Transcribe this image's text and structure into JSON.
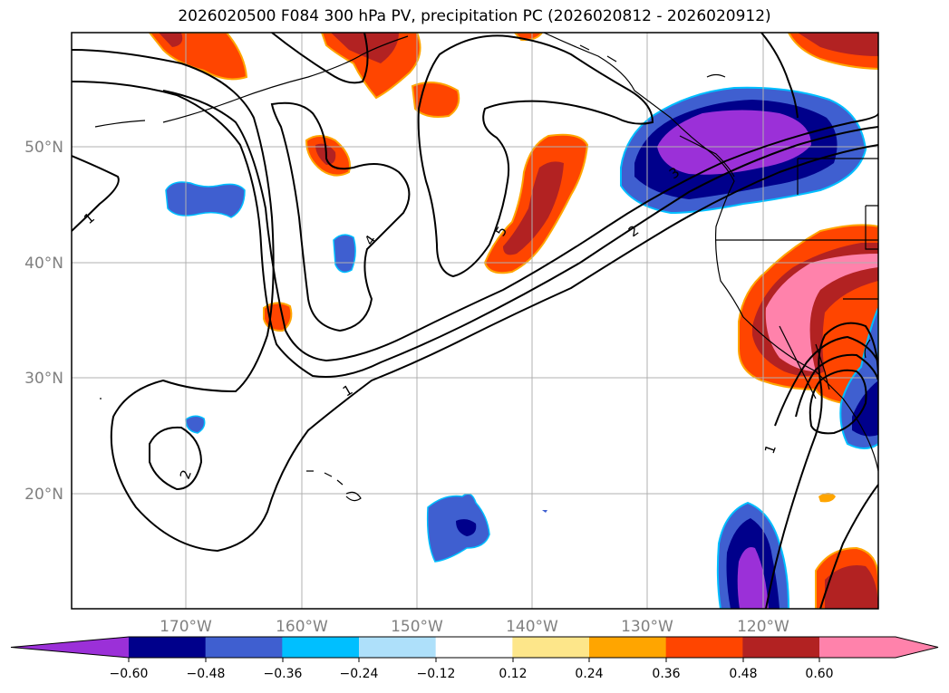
{
  "title": "2026020500 F084 300 hPa PV, precipitation PC (2026020812 - 2026020912)",
  "axes": {
    "lon_ticks": [
      "170°W",
      "160°W",
      "150°W",
      "140°W",
      "130°W",
      "120°W"
    ],
    "lat_ticks": [
      "50°N",
      "40°N",
      "30°N",
      "20°N"
    ]
  },
  "colorbar": {
    "tick_labels": [
      "−0.60",
      "−0.48",
      "−0.36",
      "−0.24",
      "−0.12",
      "0.12",
      "0.24",
      "0.36",
      "0.48",
      "0.60"
    ],
    "colors": [
      "#9b30d8",
      "#00008b",
      "#3f5fd0",
      "#00bfff",
      "#aee0fa",
      "#ffffff",
      "#fde68a",
      "#ffa500",
      "#ff4500",
      "#b22222",
      "#ff82ab"
    ],
    "extend": "both"
  },
  "contours": {
    "line_color": "#000000",
    "labels": [
      "1",
      "1",
      "1",
      "2",
      "2",
      "3",
      "4",
      "5"
    ]
  },
  "colors": {
    "grid": "#b0b0b0",
    "coast": "#000000"
  }
}
